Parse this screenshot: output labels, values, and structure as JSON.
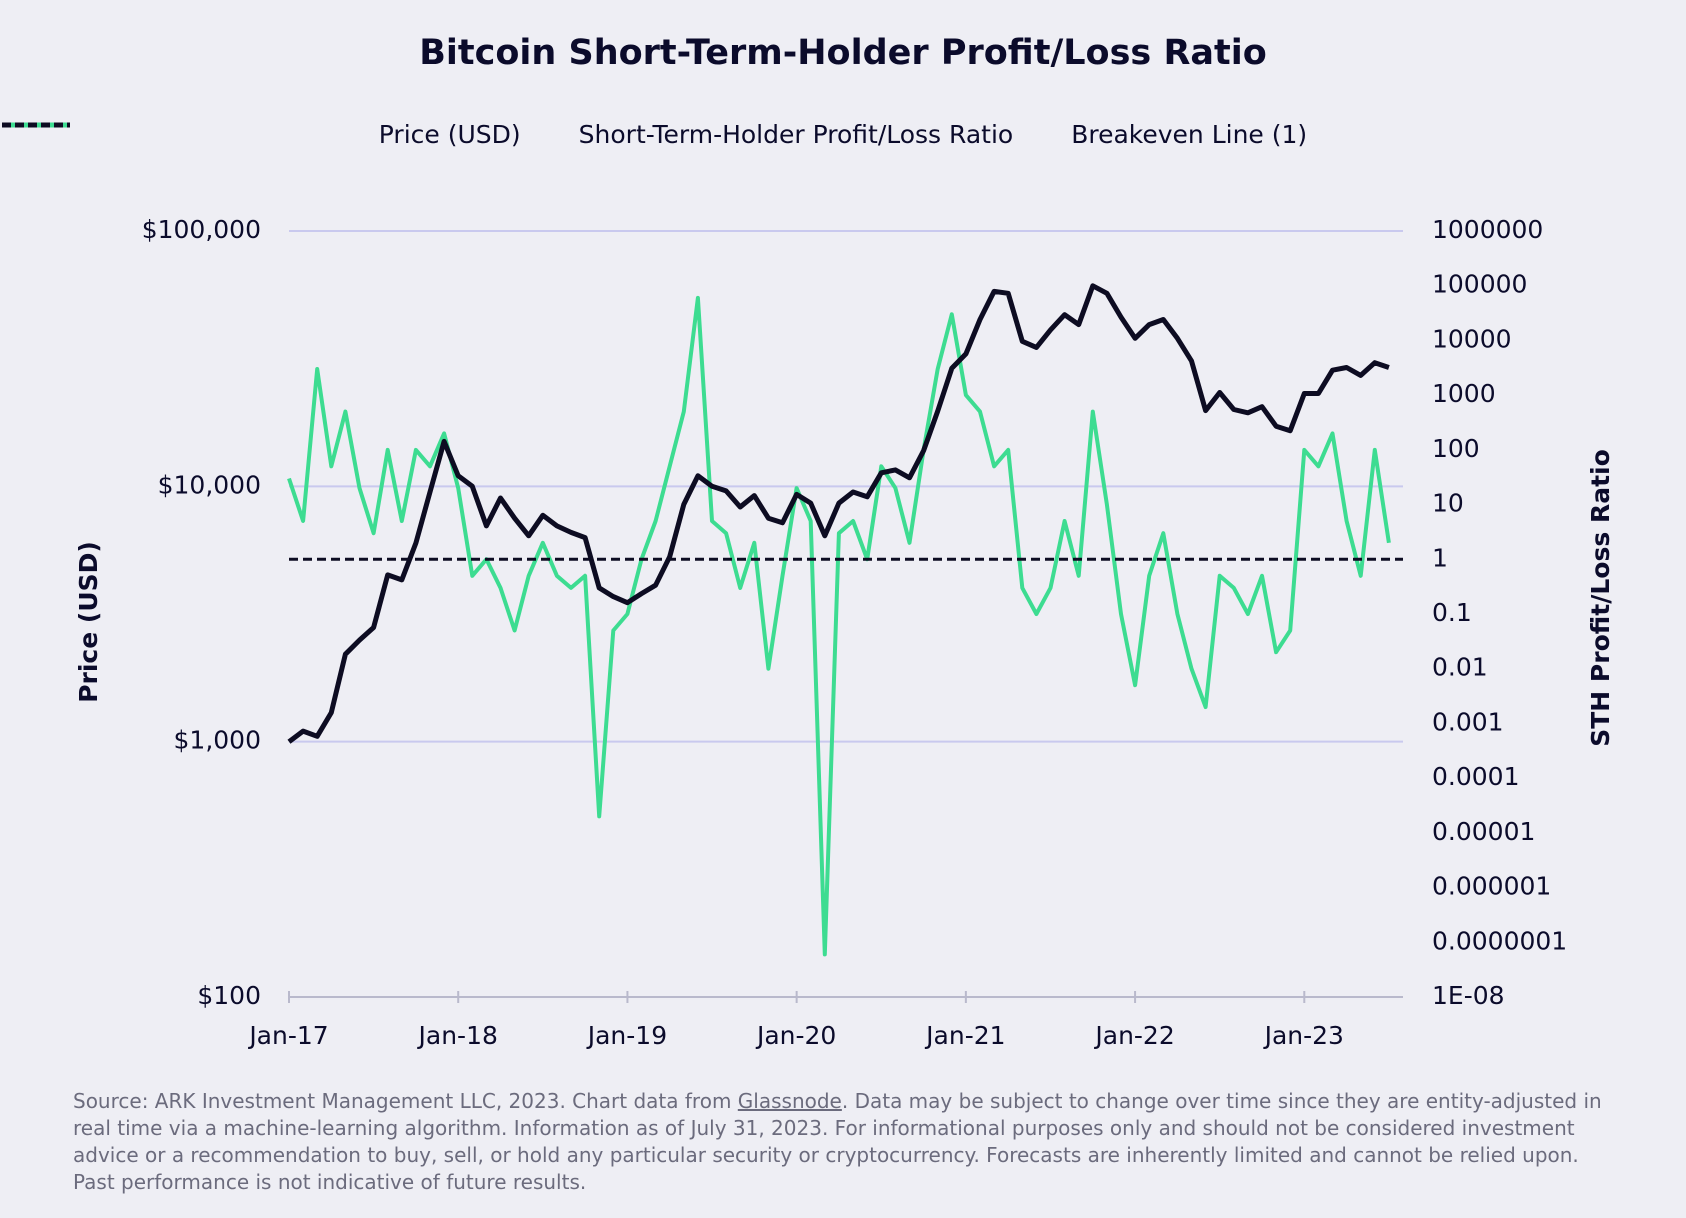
{
  "chart_data": {
    "type": "line",
    "title": "Bitcoin Short-Term-Holder Profit/Loss Ratio",
    "legend": "top",
    "grid": true,
    "y_log": true,
    "y2_log": true,
    "y_label": "Price (USD)",
    "y2_label": "STH Profit/Loss Ratio",
    "x": [
      "Jan-17",
      "Feb-17",
      "Mar-17",
      "Apr-17",
      "May-17",
      "Jun-17",
      "Jul-17",
      "Aug-17",
      "Sep-17",
      "Oct-17",
      "Nov-17",
      "Dec-17",
      "Jan-18",
      "Feb-18",
      "Mar-18",
      "Apr-18",
      "May-18",
      "Jun-18",
      "Jul-18",
      "Aug-18",
      "Sep-18",
      "Oct-18",
      "Nov-18",
      "Dec-18",
      "Jan-19",
      "Feb-19",
      "Mar-19",
      "Apr-19",
      "May-19",
      "Jun-19",
      "Jul-19",
      "Aug-19",
      "Sep-19",
      "Oct-19",
      "Nov-19",
      "Dec-19",
      "Jan-20",
      "Feb-20",
      "Mar-20",
      "Apr-20",
      "May-20",
      "Jun-20",
      "Jul-20",
      "Aug-20",
      "Sep-20",
      "Oct-20",
      "Nov-20",
      "Dec-20",
      "Jan-21",
      "Feb-21",
      "Mar-21",
      "Apr-21",
      "May-21",
      "Jun-21",
      "Jul-21",
      "Aug-21",
      "Sep-21",
      "Oct-21",
      "Nov-21",
      "Dec-21",
      "Jan-22",
      "Feb-22",
      "Mar-22",
      "Apr-22",
      "May-22",
      "Jun-22",
      "Jul-22",
      "Aug-22",
      "Sep-22",
      "Oct-22",
      "Nov-22",
      "Dec-22",
      "Jan-23",
      "Feb-23",
      "Mar-23",
      "Apr-23",
      "May-23",
      "Jun-23",
      "Jul-23"
    ],
    "xticks": [
      "Jan-17",
      "Jan-18",
      "Jan-19",
      "Jan-20",
      "Jan-21",
      "Jan-22",
      "Jan-23"
    ],
    "ylim": [
      100,
      100000
    ],
    "yticks": [
      {
        "value": 100,
        "label": "$100"
      },
      {
        "value": 1000,
        "label": "$1,000"
      },
      {
        "value": 10000,
        "label": "$10,000"
      },
      {
        "value": 100000,
        "label": "$100,000"
      }
    ],
    "y2lim": [
      1e-08,
      1000000
    ],
    "y2ticks": [
      1000000,
      100000,
      10000,
      1000,
      100,
      10,
      1,
      0.1,
      0.01,
      0.001,
      0.0001,
      1e-05,
      1e-06,
      {
        "value": 1e-07,
        "label": "0.0000001"
      },
      {
        "value": 1e-08,
        "label": "1E-08"
      }
    ],
    "series": [
      {
        "name": "Price (USD)",
        "color": "#0d0c22",
        "axis": "y",
        "values": [
          1000,
          1100,
          1050,
          1300,
          2200,
          2500,
          2800,
          4500,
          4300,
          6000,
          9500,
          15000,
          11000,
          10000,
          7000,
          9000,
          7500,
          6400,
          7700,
          7000,
          6600,
          6300,
          4000,
          3700,
          3500,
          3800,
          4100,
          5300,
          8500,
          11000,
          10000,
          9600,
          8300,
          9200,
          7500,
          7200,
          9300,
          8600,
          6400,
          8600,
          9500,
          9100,
          11300,
          11600,
          10800,
          13800,
          19700,
          29000,
          33000,
          45000,
          58000,
          57000,
          37000,
          35000,
          41000,
          47000,
          43000,
          61000,
          57000,
          46000,
          38000,
          43000,
          45000,
          38000,
          31000,
          19800,
          23300,
          20000,
          19400,
          20500,
          17200,
          16500,
          23100,
          23100,
          28500,
          29200,
          27200,
          30500,
          29200
        ]
      },
      {
        "name": "Short-Term-Holder Profit/Loss Ratio",
        "color": "#3ddc91",
        "axis": "y2",
        "values": [
          30,
          5,
          3000,
          50,
          500,
          20,
          3,
          100,
          5,
          100,
          50,
          200,
          20,
          0.5,
          1,
          0.3,
          0.05,
          0.5,
          2,
          0.5,
          0.3,
          0.5,
          2e-05,
          0.05,
          0.1,
          1,
          5,
          50,
          500,
          60000,
          5,
          3,
          0.3,
          2,
          0.01,
          0.5,
          20,
          5,
          6e-08,
          3,
          5,
          1,
          50,
          20,
          2,
          100,
          3000,
          30000,
          1000,
          500,
          50,
          100,
          0.3,
          0.1,
          0.3,
          5,
          0.5,
          500,
          10,
          0.1,
          0.005,
          0.5,
          3,
          0.1,
          0.01,
          0.002,
          0.5,
          0.3,
          0.1,
          0.5,
          0.02,
          0.05,
          100,
          50,
          200,
          5,
          0.5,
          100,
          2
        ]
      }
    ],
    "reference_line": {
      "name": "Breakeven Line (1)",
      "value": 1,
      "axis": "y2",
      "color": "#0d0c22",
      "dashed": true
    },
    "source_note": [
      "Source: ARK Investment Management LLC, 2023. Chart data from ",
      "Glassnode",
      ". Data may be subject to change over time since they are entity-adjusted in real time via a machine-learning algorithm. Information as of July 31, 2023. For informational purposes only and should not be considered investment advice or a recommendation to buy, sell, or hold any particular security or cryptocurrency. Forecasts are inherently limited and cannot be relied upon. Past performance is not indicative of future results."
    ]
  }
}
